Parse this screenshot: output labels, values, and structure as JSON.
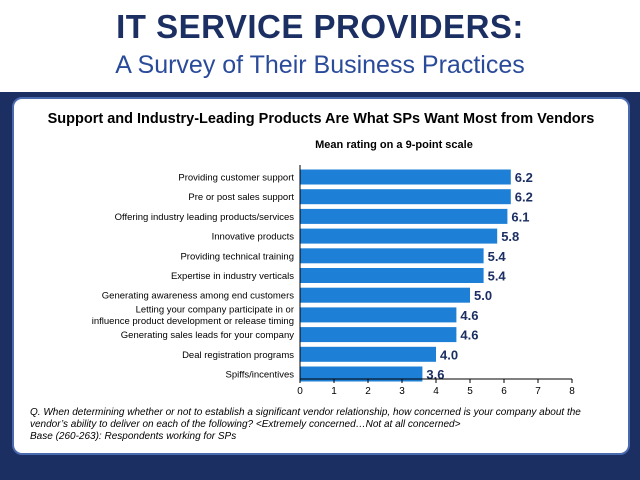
{
  "header": {
    "title": "IT SERVICE PROVIDERS:",
    "subtitle": "A Survey of Their Business Practices"
  },
  "chart_data": {
    "type": "bar",
    "orientation": "horizontal",
    "title": "Support and Industry-Leading Products Are What SPs Want Most from Vendors",
    "subtitle": "Mean rating on a 9-point scale",
    "categories": [
      "Providing customer support",
      "Pre or post sales support",
      "Offering industry leading products/services",
      "Innovative products",
      "Providing technical training",
      "Expertise in industry verticals",
      "Generating awareness among end customers",
      "Letting your company participate in or influence product development or release timing",
      "Generating sales leads for your company",
      "Deal registration programs",
      "Spiffs/incentives"
    ],
    "category_lines": [
      [
        "Providing customer support"
      ],
      [
        "Pre or post sales support"
      ],
      [
        "Offering industry leading products/services"
      ],
      [
        "Innovative products"
      ],
      [
        "Providing technical training"
      ],
      [
        "Expertise in industry verticals"
      ],
      [
        "Generating awareness among end customers"
      ],
      [
        "Letting your company participate in or",
        "influence product development or release timing"
      ],
      [
        "Generating sales leads for your company"
      ],
      [
        "Deal registration programs"
      ],
      [
        "Spiffs/incentives"
      ]
    ],
    "values": [
      6.2,
      6.2,
      6.1,
      5.8,
      5.4,
      5.4,
      5.0,
      4.6,
      4.6,
      4.0,
      3.6
    ],
    "value_labels": [
      "6.2",
      "6.2",
      "6.1",
      "5.8",
      "5.4",
      "5.4",
      "5.0",
      "4.6",
      "4.6",
      "4.0",
      "3.6"
    ],
    "xlim": [
      0,
      8
    ],
    "xticks": [
      "0",
      "1",
      "2",
      "3",
      "4",
      "5",
      "6",
      "7",
      "8"
    ],
    "bar_color": "#1e7fd6",
    "grid": false
  },
  "footnote": {
    "question_line1": "Q. When determining whether or not to establish a significant vendor relationship, how concerned is your company about the",
    "question_line2": "vendor’s ability to deliver on each of the following? <Extremely concerned…Not at all concerned>",
    "base": "Base (260-263):  Respondents working for SPs"
  },
  "colors": {
    "navy": "#1b2f63",
    "accent": "#2a4a9a",
    "panel_border": "#4a6ab0"
  }
}
